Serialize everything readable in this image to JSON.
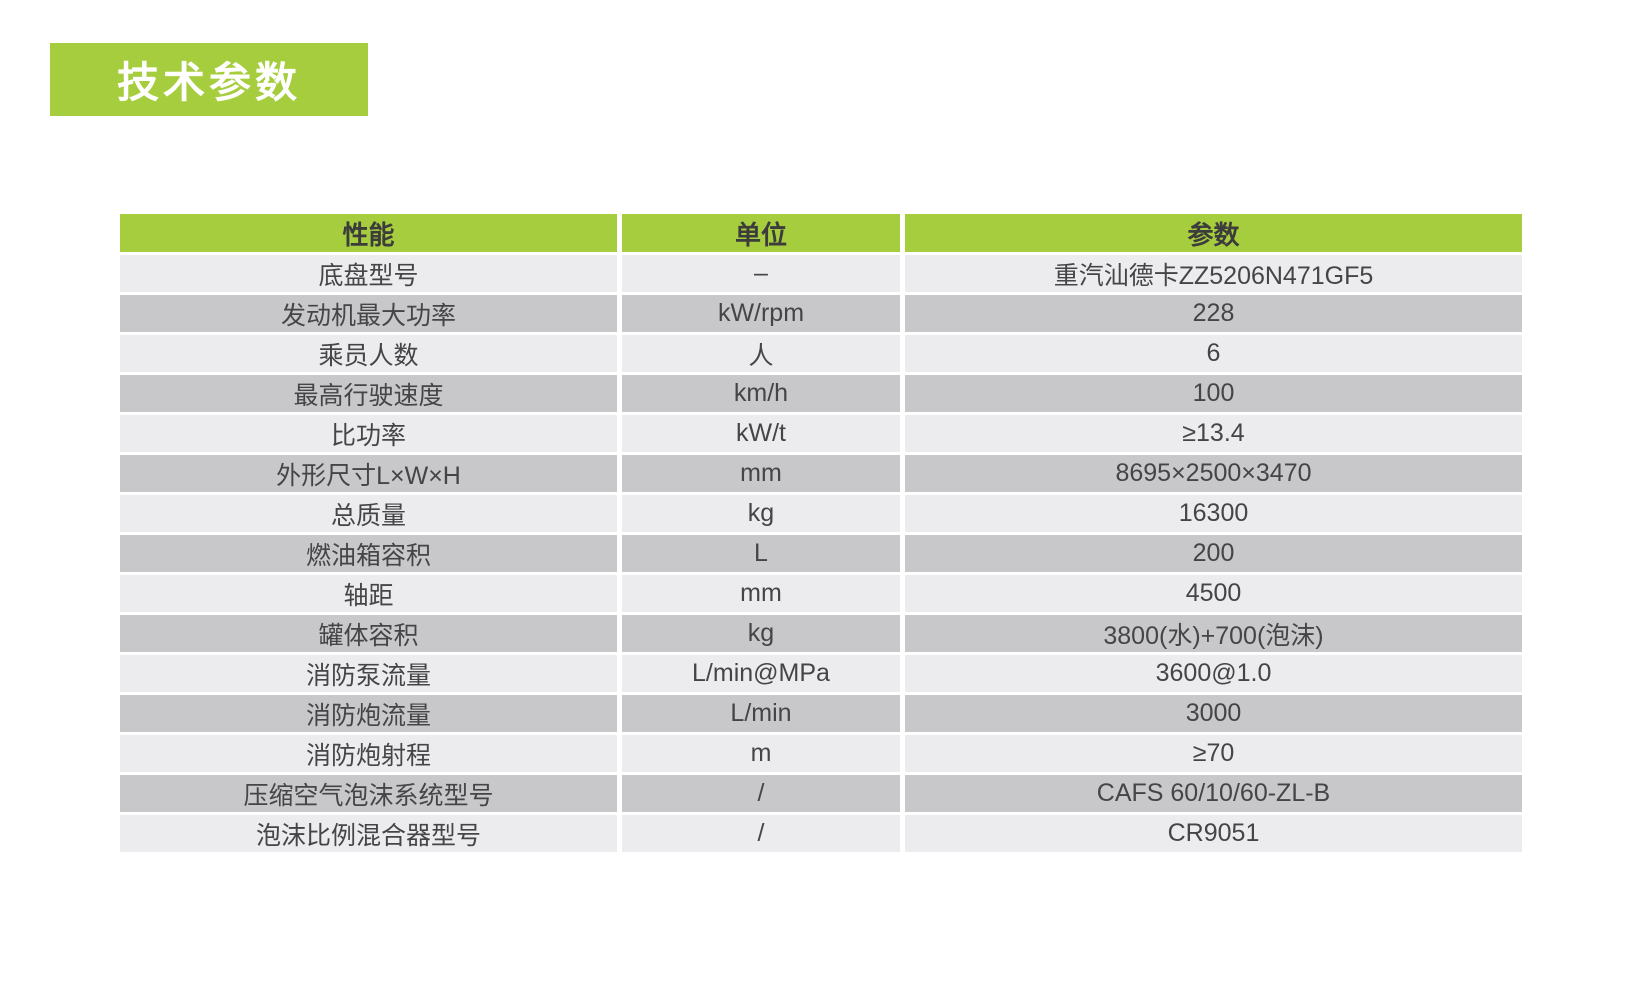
{
  "title": {
    "text": "技术参数"
  },
  "colors": {
    "accent-green": "#a6cd3e",
    "row-light": "#ececee",
    "row-dark": "#c8c8ca",
    "header-text": "#3c3c3c",
    "cell-text": "#454548",
    "title-text": "#ffffff",
    "page-bg": "#ffffff"
  },
  "table": {
    "columns": [
      {
        "label": "性能"
      },
      {
        "label": "单位"
      },
      {
        "label": "参数"
      }
    ],
    "rows": [
      {
        "name": "底盘型号",
        "unit": "–",
        "value": "重汽汕德卡ZZ5206N471GF5"
      },
      {
        "name": "发动机最大功率",
        "unit": "kW/rpm",
        "value": "228"
      },
      {
        "name": "乘员人数",
        "unit": "人",
        "value": "6"
      },
      {
        "name": "最高行驶速度",
        "unit": "km/h",
        "value": "100"
      },
      {
        "name": "比功率",
        "unit": "kW/t",
        "value": "≥13.4"
      },
      {
        "name": "外形尺寸L×W×H",
        "unit": "mm",
        "value": "8695×2500×3470"
      },
      {
        "name": "总质量",
        "unit": "kg",
        "value": "16300"
      },
      {
        "name": "燃油箱容积",
        "unit": "L",
        "value": "200"
      },
      {
        "name": "轴距",
        "unit": "mm",
        "value": "4500"
      },
      {
        "name": "罐体容积",
        "unit": "kg",
        "value": "3800(水)+700(泡沫)"
      },
      {
        "name": "消防泵流量",
        "unit": "L/min@MPa",
        "value": "3600@1.0"
      },
      {
        "name": "消防炮流量",
        "unit": "L/min",
        "value": "3000"
      },
      {
        "name": "消防炮射程",
        "unit": "m",
        "value": "≥70"
      },
      {
        "name": "压缩空气泡沫系统型号",
        "unit": "/",
        "value": "CAFS 60/10/60-ZL-B"
      },
      {
        "name": "泡沫比例混合器型号",
        "unit": "/",
        "value": "CR9051"
      }
    ]
  }
}
